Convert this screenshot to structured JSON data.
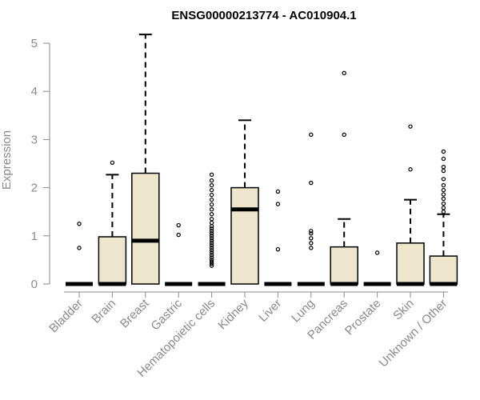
{
  "chart_data": {
    "type": "box",
    "title": "ENSG00000213774 - AC010904.1",
    "xlabel": "",
    "ylabel": "Expression",
    "ylim": [
      0,
      5
    ],
    "yticks": [
      0,
      1,
      2,
      3,
      4,
      5
    ],
    "grid": false,
    "box_fill": "#ede6cd",
    "categories": [
      "Bladder",
      "Brain",
      "Breast",
      "Gastric",
      "Hematopoietic cells",
      "Kidney",
      "Liver",
      "Lung",
      "Pancreas",
      "Prostate",
      "Skin",
      "Unknown / Other"
    ],
    "boxes": [
      {
        "q1": 0,
        "median": 0,
        "q3": 0,
        "whisker_low": 0,
        "whisker_high": 0,
        "outliers": [
          0.75,
          1.25
        ]
      },
      {
        "q1": 0,
        "median": 0,
        "q3": 0.98,
        "whisker_low": 0,
        "whisker_high": 2.27,
        "outliers": [
          2.52
        ]
      },
      {
        "q1": 0,
        "median": 0.9,
        "q3": 2.3,
        "whisker_low": 0,
        "whisker_high": 5.18,
        "outliers": []
      },
      {
        "q1": 0,
        "median": 0,
        "q3": 0,
        "whisker_low": 0,
        "whisker_high": 0,
        "outliers": [
          1.02,
          1.22
        ]
      },
      {
        "q1": 0,
        "median": 0,
        "q3": 0,
        "whisker_low": 0,
        "whisker_high": 0,
        "outliers": [
          0.38,
          0.42,
          0.46,
          0.5,
          0.55,
          0.6,
          0.65,
          0.7,
          0.75,
          0.8,
          0.85,
          0.9,
          0.95,
          1.0,
          1.05,
          1.1,
          1.15,
          1.2,
          1.27,
          1.35,
          1.45,
          1.55,
          1.65,
          1.75,
          1.85,
          1.95,
          2.05,
          2.15,
          2.27
        ]
      },
      {
        "q1": 0,
        "median": 1.55,
        "q3": 2.0,
        "whisker_low": 0,
        "whisker_high": 3.4,
        "outliers": []
      },
      {
        "q1": 0,
        "median": 0,
        "q3": 0,
        "whisker_low": 0,
        "whisker_high": 0,
        "outliers": [
          0.72,
          1.66,
          1.92
        ]
      },
      {
        "q1": 0,
        "median": 0,
        "q3": 0,
        "whisker_low": 0,
        "whisker_high": 0,
        "outliers": [
          0.75,
          0.85,
          0.95,
          1.05,
          1.1,
          2.1,
          3.1
        ]
      },
      {
        "q1": 0,
        "median": 0,
        "q3": 0.77,
        "whisker_low": 0,
        "whisker_high": 1.35,
        "outliers": [
          3.1,
          4.38
        ]
      },
      {
        "q1": 0,
        "median": 0,
        "q3": 0,
        "whisker_low": 0,
        "whisker_high": 0,
        "outliers": [
          0.65
        ]
      },
      {
        "q1": 0,
        "median": 0,
        "q3": 0.85,
        "whisker_low": 0,
        "whisker_high": 1.75,
        "outliers": [
          2.38,
          3.27
        ]
      },
      {
        "q1": 0,
        "median": 0,
        "q3": 0.58,
        "whisker_low": 0,
        "whisker_high": 1.45,
        "outliers": [
          1.5,
          1.58,
          1.67,
          1.77,
          1.86,
          1.95,
          2.05,
          2.18,
          2.35,
          2.43,
          2.6,
          2.75
        ]
      }
    ]
  }
}
